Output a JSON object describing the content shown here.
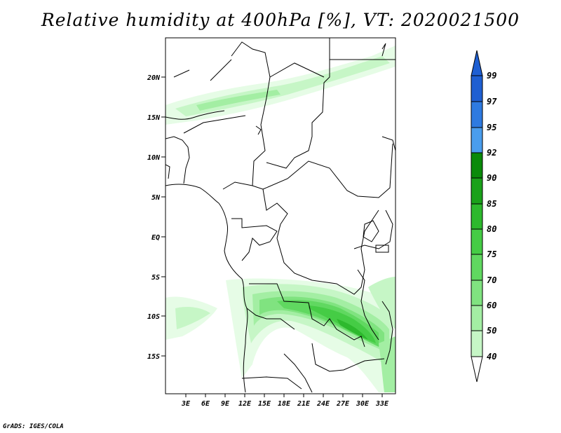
{
  "title": "Relative humidity at 400hPa [%], VT: 2020021500",
  "credit": "GrADS: IGES/COLA",
  "lat_labels": [
    "20N",
    "15N",
    "10N",
    "5N",
    "EQ",
    "5S",
    "10S",
    "15S"
  ],
  "lon_labels": [
    "3E",
    "6E",
    "9E",
    "12E",
    "15E",
    "18E",
    "21E",
    "24E",
    "27E",
    "30E",
    "33E"
  ],
  "colorbar": {
    "levels": [
      "99",
      "97",
      "95",
      "92",
      "90",
      "85",
      "80",
      "75",
      "70",
      "60",
      "50",
      "40"
    ],
    "colors": [
      "#1f5fd2",
      "#2e7ae0",
      "#4a9ded",
      "#0a8a0a",
      "#1aa11a",
      "#2db92d",
      "#45cc45",
      "#60d860",
      "#80e380",
      "#a3ee a3",
      "#c6f6c6",
      "#e6fce6"
    ]
  }
}
